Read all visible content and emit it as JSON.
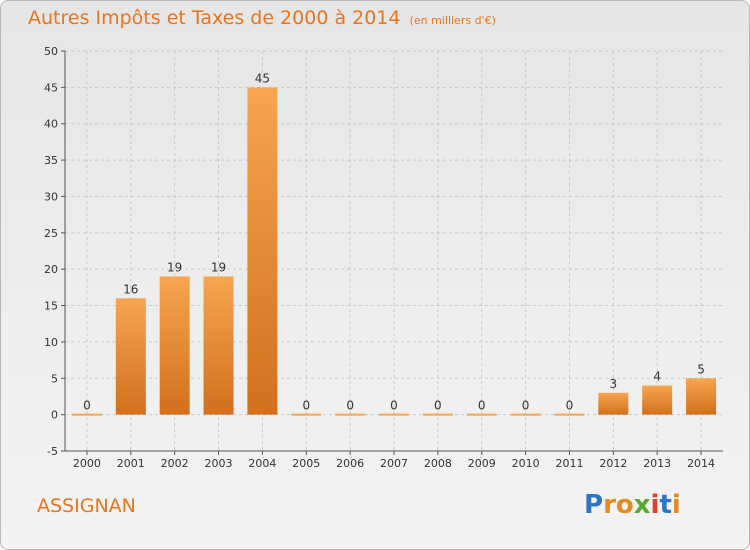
{
  "title": "Autres Impôts et Taxes de 2000 à 2014",
  "unit": "(en milliers d'€)",
  "place": "ASSIGNAN",
  "logo": {
    "letters": [
      "P",
      "r",
      "o",
      "x",
      "i",
      "t",
      "i"
    ],
    "colors": [
      "#2e74c4",
      "#e58a1f",
      "#e58a1f",
      "#5aa82c",
      "#e83b2f",
      "#2e74c4",
      "#e58a1f"
    ]
  },
  "chart_data": {
    "type": "bar",
    "title": "Autres Impôts et Taxes de 2000 à 2014",
    "categories": [
      "2000",
      "2001",
      "2002",
      "2003",
      "2004",
      "2005",
      "2006",
      "2007",
      "2008",
      "2009",
      "2010",
      "2011",
      "2012",
      "2013",
      "2014"
    ],
    "values": [
      0,
      16,
      19,
      19,
      45,
      0,
      0,
      0,
      0,
      0,
      0,
      0,
      3,
      4,
      5
    ],
    "ylim": [
      -5,
      50
    ],
    "yticks": [
      -5,
      0,
      5,
      10,
      15,
      20,
      25,
      30,
      35,
      40,
      45,
      50
    ],
    "grid": true,
    "colors": {
      "bar_top": "#f7a54f",
      "bar_bottom": "#d2701c",
      "accent": "#e8741d"
    }
  }
}
